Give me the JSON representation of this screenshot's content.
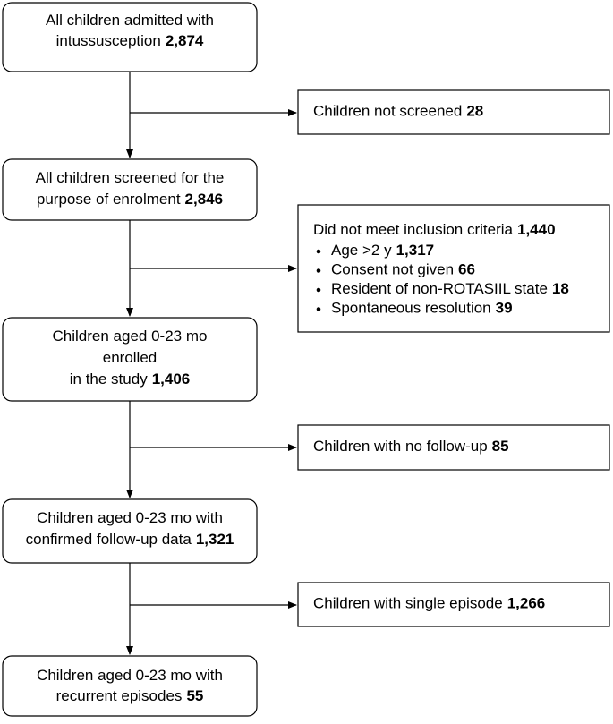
{
  "main": [
    {
      "lines": [
        {
          "text": "All children admitted with"
        },
        {
          "text": "intussusception",
          "bold": "2,874"
        }
      ]
    },
    {
      "lines": [
        {
          "text": "All children screened for the"
        },
        {
          "text": "purpose of enrolment",
          "bold": "2,846"
        }
      ]
    },
    {
      "lines": [
        {
          "text": "Children aged 0-23 mo"
        },
        {
          "text": "enrolled"
        },
        {
          "text": "in the study",
          "bold": "1,406"
        }
      ]
    },
    {
      "lines": [
        {
          "text": "Children aged 0-23 mo with"
        },
        {
          "text": "confirmed follow-up data",
          "bold": "1,321"
        }
      ]
    },
    {
      "lines": [
        {
          "text": "Children aged 0-23 mo with"
        },
        {
          "text": "recurrent episodes",
          "bold": "55"
        }
      ]
    }
  ],
  "side": [
    {
      "heading": {
        "text": "Children not screened",
        "bold": "28"
      }
    },
    {
      "heading": {
        "text": "Did not meet inclusion criteria",
        "bold": "1,440"
      },
      "bullets": [
        {
          "text": "Age >2 y",
          "bold": "1,317"
        },
        {
          "text": "Consent not given",
          "bold": "66"
        },
        {
          "text": "Resident of non-ROTASIIL state",
          "bold": "18"
        },
        {
          "text": "Spontaneous resolution",
          "bold": "39"
        }
      ]
    },
    {
      "heading": {
        "text": "Children with no follow-up",
        "bold": "85"
      }
    },
    {
      "heading": {
        "text": "Children with single episode",
        "bold": "1,266"
      }
    }
  ]
}
